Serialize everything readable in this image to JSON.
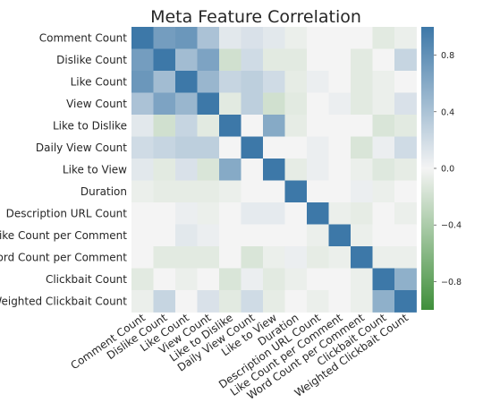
{
  "chart_data": {
    "type": "heatmap",
    "title": "Meta Feature Correlation",
    "labels": [
      "Comment Count",
      "Dislike Count",
      "Like Count",
      "View Count",
      "Like to Dislike",
      "Daily View Count",
      "Like to View",
      "Duration",
      "Description URL Count",
      "Like Count per Comment",
      "Word Count per Comment",
      "Clickbait Count",
      "Weighted Clickbait Count"
    ],
    "values": [
      [
        1.0,
        0.7,
        0.75,
        0.4,
        0.1,
        0.15,
        0.1,
        -0.05,
        0.0,
        0.0,
        0.0,
        -0.1,
        -0.05
      ],
      [
        0.7,
        1.0,
        0.45,
        0.65,
        -0.2,
        0.2,
        -0.1,
        -0.1,
        0.0,
        0.0,
        -0.1,
        0.0,
        0.25
      ],
      [
        0.75,
        0.45,
        1.0,
        0.5,
        0.25,
        0.3,
        0.2,
        -0.08,
        0.05,
        0.0,
        -0.1,
        -0.05,
        0.0
      ],
      [
        0.4,
        0.65,
        0.5,
        1.0,
        -0.1,
        0.3,
        -0.2,
        -0.1,
        0.0,
        0.05,
        -0.1,
        -0.05,
        0.15
      ],
      [
        0.1,
        -0.2,
        0.25,
        -0.1,
        1.0,
        0.0,
        0.6,
        -0.08,
        0.0,
        0.0,
        0.0,
        -0.15,
        -0.1
      ],
      [
        0.2,
        0.25,
        0.3,
        0.3,
        0.0,
        1.0,
        0.0,
        0.0,
        0.05,
        0.0,
        -0.15,
        0.05,
        0.2
      ],
      [
        0.1,
        -0.1,
        0.15,
        -0.15,
        0.6,
        0.0,
        1.0,
        -0.08,
        0.05,
        0.0,
        -0.05,
        -0.12,
        -0.08
      ],
      [
        -0.05,
        -0.08,
        -0.08,
        -0.08,
        -0.05,
        0.0,
        0.0,
        1.0,
        0.0,
        0.0,
        0.05,
        -0.05,
        0.0
      ],
      [
        0.0,
        0.0,
        0.05,
        -0.05,
        0.0,
        0.08,
        0.08,
        0.0,
        1.0,
        -0.05,
        -0.08,
        0.0,
        -0.05
      ],
      [
        0.0,
        0.0,
        0.1,
        0.05,
        0.0,
        0.0,
        0.0,
        0.0,
        -0.05,
        1.0,
        -0.05,
        0.0,
        0.0
      ],
      [
        0.0,
        -0.1,
        -0.1,
        -0.1,
        0.0,
        -0.15,
        -0.05,
        0.05,
        -0.08,
        -0.05,
        1.0,
        -0.05,
        -0.05
      ],
      [
        -0.1,
        0.0,
        -0.05,
        0.0,
        -0.15,
        0.05,
        -0.1,
        -0.05,
        0.0,
        0.0,
        -0.05,
        1.0,
        0.55
      ],
      [
        -0.05,
        0.25,
        0.0,
        0.15,
        -0.1,
        0.2,
        -0.08,
        0.0,
        -0.05,
        0.0,
        -0.05,
        0.55,
        1.0
      ]
    ],
    "vmin": -1.0,
    "vmax": 1.0,
    "colorbar_ticks": [
      0.8,
      0.4,
      0.0,
      -0.4,
      -0.8
    ],
    "colorbar_tick_labels": [
      "0.8",
      "0.4",
      "0.0",
      "−0.4",
      "−0.8"
    ],
    "colors": {
      "positive": "#3d78a8",
      "neutral": "#f4f4f4",
      "negative": "#3f8f3a"
    },
    "grid": false,
    "legend": "colorbar-right"
  }
}
